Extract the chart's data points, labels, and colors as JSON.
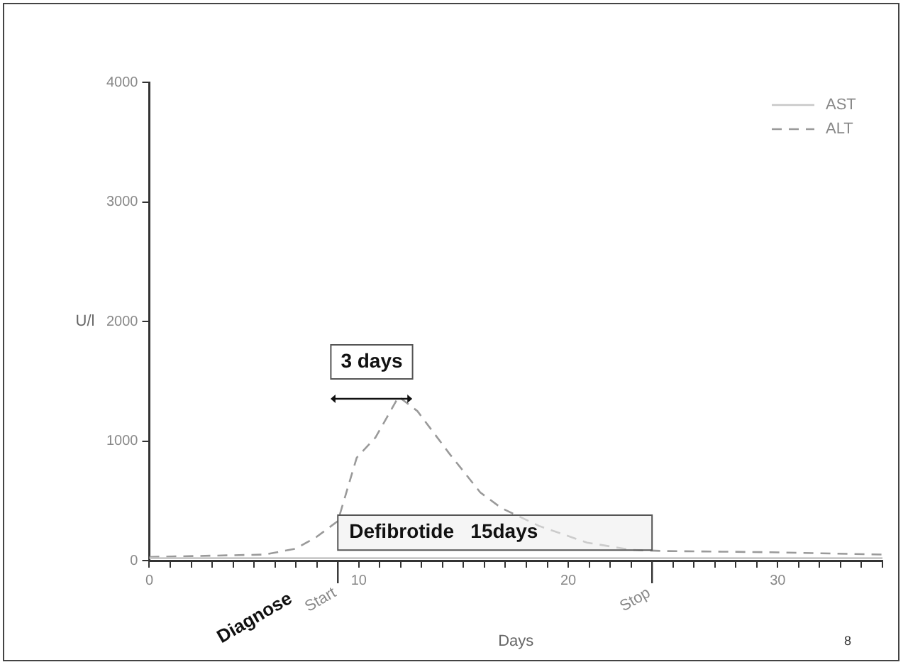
{
  "chart_data": {
    "type": "line",
    "xlabel": "Days",
    "ylabel": "U/l",
    "xlim": [
      0,
      35
    ],
    "ylim": [
      0,
      4000
    ],
    "xticks": [
      0,
      {
        "value": 1,
        "label": null
      },
      {
        "value": 2,
        "label": null
      },
      {
        "value": 3,
        "label": null
      },
      {
        "value": 4,
        "label": null
      },
      {
        "value": 5,
        "label": null
      },
      {
        "value": 6,
        "label": null
      },
      {
        "value": 7,
        "label": null
      },
      {
        "value": 8,
        "label": null
      },
      {
        "value": 9,
        "label": null
      },
      10,
      {
        "value": 11,
        "label": null
      },
      {
        "value": 12,
        "label": null
      },
      {
        "value": 13,
        "label": null
      },
      {
        "value": 14,
        "label": null
      },
      {
        "value": 15,
        "label": null
      },
      {
        "value": 16,
        "label": null
      },
      {
        "value": 17,
        "label": null
      },
      {
        "value": 18,
        "label": null
      },
      {
        "value": 19,
        "label": null
      },
      20,
      {
        "value": 21,
        "label": null
      },
      {
        "value": 22,
        "label": null
      },
      {
        "value": 23,
        "label": null
      },
      {
        "value": 24,
        "label": null
      },
      {
        "value": 25,
        "label": null
      },
      {
        "value": 26,
        "label": null
      },
      {
        "value": 27,
        "label": null
      },
      {
        "value": 28,
        "label": null
      },
      {
        "value": 29,
        "label": null
      },
      30,
      {
        "value": 31,
        "label": null
      },
      {
        "value": 32,
        "label": null
      },
      {
        "value": 33,
        "label": null
      },
      {
        "value": 34,
        "label": null
      },
      {
        "value": 35,
        "label": null
      }
    ],
    "yticks": [
      0,
      1000,
      2000,
      3000,
      4000
    ],
    "grid": false,
    "legend": "top right",
    "marker": "none",
    "series": [
      {
        "name": "AST",
        "color": "#c8c8c8",
        "line_style": "solid",
        "x": [
          0,
          5,
          10,
          15,
          20,
          25,
          30,
          35
        ],
        "values": [
          20,
          20,
          20,
          20,
          20,
          20,
          20,
          20
        ]
      },
      {
        "name": "ALT",
        "color": "#9a9a9a",
        "line_style": "dashed",
        "x": [
          0,
          5.5,
          7,
          8,
          9,
          9.9,
          10.8,
          11.9,
          12.8,
          14.3,
          15.8,
          16.8,
          18.6,
          20.9,
          23,
          24.5,
          29.6,
          35
        ],
        "values": [
          30,
          50,
          100,
          200,
          330,
          860,
          1030,
          1370,
          1250,
          900,
          570,
          440,
          290,
          150,
          90,
          80,
          70,
          50
        ]
      }
    ],
    "ref_lines": [
      {
        "axis": "x",
        "value": 9,
        "label": "Start",
        "color": "#333333"
      },
      {
        "axis": "x",
        "value": 24,
        "label": "Stop",
        "color": "#333333"
      }
    ],
    "bands": [
      {
        "axis": "x",
        "from": 9,
        "to": 24,
        "label": "Defibrotide   15days",
        "color": "#eeeeee"
      }
    ],
    "annotations": [
      "3 days",
      "Diagnose",
      "8"
    ]
  }
}
